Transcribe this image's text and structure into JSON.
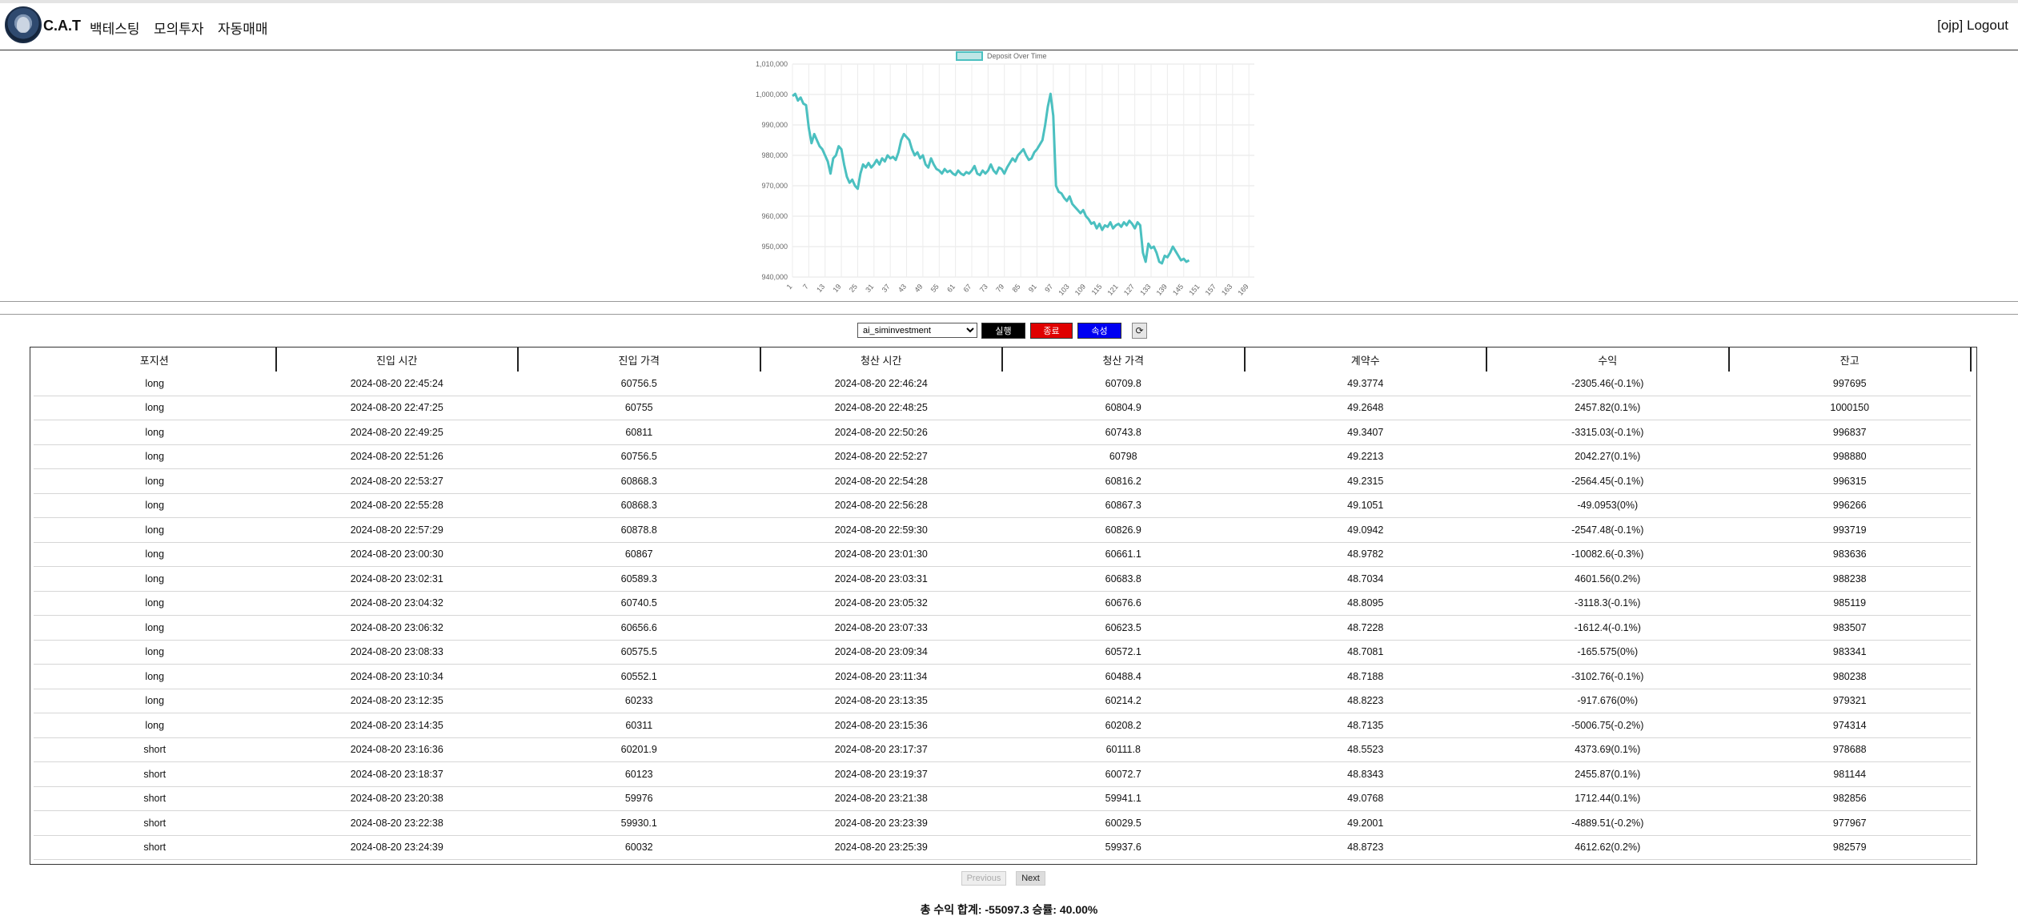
{
  "nav": {
    "brand": "C.A.T",
    "links": [
      "백테스팅",
      "모의투자",
      "자동매매"
    ],
    "user": "[ojp]",
    "logout": "Logout"
  },
  "chart_data": {
    "type": "line",
    "title": "",
    "legend": "Deposit Over Time",
    "legend_position": "top",
    "line_color": "#4bc0c0",
    "grid": true,
    "ylim": [
      940000,
      1010000
    ],
    "y_ticks": [
      "940,000",
      "950,000",
      "960,000",
      "970,000",
      "980,000",
      "990,000",
      "1,000,000",
      "1,010,000"
    ],
    "x_ticks": [
      "1",
      "7",
      "13",
      "19",
      "25",
      "31",
      "37",
      "43",
      "49",
      "55",
      "61",
      "67",
      "73",
      "79",
      "85",
      "91",
      "97",
      "103",
      "109",
      "115",
      "121",
      "127",
      "133",
      "139",
      "145",
      "151",
      "157",
      "163",
      "169"
    ],
    "x_count": 171,
    "keypoints": [
      [
        1,
        999500
      ],
      [
        2,
        1000200
      ],
      [
        3,
        998000
      ],
      [
        4,
        999000
      ],
      [
        5,
        997000
      ],
      [
        6,
        996500
      ],
      [
        7,
        989000
      ],
      [
        8,
        984000
      ],
      [
        9,
        987000
      ],
      [
        10,
        985000
      ],
      [
        11,
        983000
      ],
      [
        12,
        982000
      ],
      [
        13,
        980000
      ],
      [
        14,
        978000
      ],
      [
        15,
        974000
      ],
      [
        16,
        979000
      ],
      [
        17,
        980000
      ],
      [
        18,
        983000
      ],
      [
        19,
        982000
      ],
      [
        20,
        977000
      ],
      [
        21,
        973000
      ],
      [
        22,
        971000
      ],
      [
        23,
        972000
      ],
      [
        24,
        970000
      ],
      [
        25,
        969000
      ],
      [
        26,
        974000
      ],
      [
        27,
        977000
      ],
      [
        28,
        976000
      ],
      [
        29,
        977500
      ],
      [
        30,
        976000
      ],
      [
        31,
        977000
      ],
      [
        32,
        978500
      ],
      [
        33,
        977000
      ],
      [
        34,
        979000
      ],
      [
        35,
        978000
      ],
      [
        36,
        980000
      ],
      [
        37,
        979000
      ],
      [
        38,
        979500
      ],
      [
        39,
        978500
      ],
      [
        40,
        981000
      ],
      [
        41,
        985000
      ],
      [
        42,
        987000
      ],
      [
        43,
        986000
      ],
      [
        44,
        985000
      ],
      [
        45,
        982000
      ],
      [
        46,
        980000
      ],
      [
        47,
        981000
      ],
      [
        48,
        979000
      ],
      [
        49,
        980000
      ],
      [
        50,
        977000
      ],
      [
        51,
        976000
      ],
      [
        52,
        979000
      ],
      [
        53,
        977000
      ],
      [
        54,
        975500
      ],
      [
        55,
        975000
      ],
      [
        56,
        974000
      ],
      [
        57,
        975500
      ],
      [
        58,
        974500
      ],
      [
        59,
        975000
      ],
      [
        60,
        974000
      ],
      [
        61,
        973500
      ],
      [
        62,
        975000
      ],
      [
        63,
        974000
      ],
      [
        64,
        973500
      ],
      [
        65,
        974500
      ],
      [
        66,
        974000
      ],
      [
        67,
        975000
      ],
      [
        68,
        976500
      ],
      [
        69,
        974000
      ],
      [
        70,
        973500
      ],
      [
        71,
        975000
      ],
      [
        72,
        974000
      ],
      [
        73,
        975000
      ],
      [
        74,
        977000
      ],
      [
        75,
        975000
      ],
      [
        76,
        974000
      ],
      [
        77,
        976000
      ],
      [
        78,
        975500
      ],
      [
        79,
        974000
      ],
      [
        80,
        976000
      ],
      [
        81,
        977500
      ],
      [
        82,
        979000
      ],
      [
        83,
        978000
      ],
      [
        84,
        980000
      ],
      [
        85,
        981000
      ],
      [
        86,
        982000
      ],
      [
        87,
        980000
      ],
      [
        88,
        978500
      ],
      [
        89,
        979000
      ],
      [
        90,
        981000
      ],
      [
        91,
        982000
      ],
      [
        92,
        983500
      ],
      [
        93,
        985000
      ],
      [
        94,
        990000
      ],
      [
        95,
        996000
      ],
      [
        96,
        1000200
      ],
      [
        97,
        993000
      ],
      [
        98,
        970000
      ],
      [
        99,
        968000
      ],
      [
        100,
        967500
      ],
      [
        101,
        966000
      ],
      [
        102,
        965000
      ],
      [
        103,
        966500
      ],
      [
        104,
        964000
      ],
      [
        105,
        963000
      ],
      [
        106,
        962000
      ],
      [
        107,
        961000
      ],
      [
        108,
        962000
      ],
      [
        109,
        960000
      ],
      [
        110,
        959000
      ],
      [
        111,
        957500
      ],
      [
        112,
        958000
      ],
      [
        113,
        956000
      ],
      [
        114,
        957500
      ],
      [
        115,
        955500
      ],
      [
        116,
        957000
      ],
      [
        117,
        956500
      ],
      [
        118,
        958000
      ],
      [
        119,
        956000
      ],
      [
        120,
        957000
      ],
      [
        121,
        957500
      ],
      [
        122,
        956500
      ],
      [
        123,
        958000
      ],
      [
        124,
        957000
      ],
      [
        125,
        958500
      ],
      [
        126,
        957500
      ],
      [
        127,
        956000
      ],
      [
        128,
        958000
      ],
      [
        129,
        957000
      ],
      [
        130,
        948000
      ],
      [
        131,
        945000
      ],
      [
        132,
        951000
      ],
      [
        133,
        949500
      ],
      [
        134,
        950000
      ],
      [
        135,
        948000
      ],
      [
        136,
        945000
      ],
      [
        137,
        944500
      ],
      [
        138,
        947000
      ],
      [
        139,
        946500
      ],
      [
        140,
        948000
      ],
      [
        141,
        950000
      ],
      [
        142,
        948500
      ],
      [
        143,
        947000
      ],
      [
        144,
        945500
      ],
      [
        145,
        946000
      ],
      [
        146,
        945000
      ],
      [
        147,
        945500
      ]
    ]
  },
  "controls": {
    "strategy_value": "ai_siminvestment",
    "run_label": "실행",
    "stop_label": "종료",
    "prop_label": "속성",
    "refresh_glyph": "⟳"
  },
  "table": {
    "headers": [
      "포지션",
      "진입 시간",
      "진입 가격",
      "청산 시간",
      "청산 가격",
      "계약수",
      "수익",
      "잔고"
    ],
    "rows": [
      [
        "long",
        "2024-08-20 22:45:24",
        "60756.5",
        "2024-08-20 22:46:24",
        "60709.8",
        "49.3774",
        "-2305.46(-0.1%)",
        "997695"
      ],
      [
        "long",
        "2024-08-20 22:47:25",
        "60755",
        "2024-08-20 22:48:25",
        "60804.9",
        "49.2648",
        "2457.82(0.1%)",
        "1000150"
      ],
      [
        "long",
        "2024-08-20 22:49:25",
        "60811",
        "2024-08-20 22:50:26",
        "60743.8",
        "49.3407",
        "-3315.03(-0.1%)",
        "996837"
      ],
      [
        "long",
        "2024-08-20 22:51:26",
        "60756.5",
        "2024-08-20 22:52:27",
        "60798",
        "49.2213",
        "2042.27(0.1%)",
        "998880"
      ],
      [
        "long",
        "2024-08-20 22:53:27",
        "60868.3",
        "2024-08-20 22:54:28",
        "60816.2",
        "49.2315",
        "-2564.45(-0.1%)",
        "996315"
      ],
      [
        "long",
        "2024-08-20 22:55:28",
        "60868.3",
        "2024-08-20 22:56:28",
        "60867.3",
        "49.1051",
        "-49.0953(0%)",
        "996266"
      ],
      [
        "long",
        "2024-08-20 22:57:29",
        "60878.8",
        "2024-08-20 22:59:30",
        "60826.9",
        "49.0942",
        "-2547.48(-0.1%)",
        "993719"
      ],
      [
        "long",
        "2024-08-20 23:00:30",
        "60867",
        "2024-08-20 23:01:30",
        "60661.1",
        "48.9782",
        "-10082.6(-0.3%)",
        "983636"
      ],
      [
        "long",
        "2024-08-20 23:02:31",
        "60589.3",
        "2024-08-20 23:03:31",
        "60683.8",
        "48.7034",
        "4601.56(0.2%)",
        "988238"
      ],
      [
        "long",
        "2024-08-20 23:04:32",
        "60740.5",
        "2024-08-20 23:05:32",
        "60676.6",
        "48.8095",
        "-3118.3(-0.1%)",
        "985119"
      ],
      [
        "long",
        "2024-08-20 23:06:32",
        "60656.6",
        "2024-08-20 23:07:33",
        "60623.5",
        "48.7228",
        "-1612.4(-0.1%)",
        "983507"
      ],
      [
        "long",
        "2024-08-20 23:08:33",
        "60575.5",
        "2024-08-20 23:09:34",
        "60572.1",
        "48.7081",
        "-165.575(0%)",
        "983341"
      ],
      [
        "long",
        "2024-08-20 23:10:34",
        "60552.1",
        "2024-08-20 23:11:34",
        "60488.4",
        "48.7188",
        "-3102.76(-0.1%)",
        "980238"
      ],
      [
        "long",
        "2024-08-20 23:12:35",
        "60233",
        "2024-08-20 23:13:35",
        "60214.2",
        "48.8223",
        "-917.676(0%)",
        "979321"
      ],
      [
        "long",
        "2024-08-20 23:14:35",
        "60311",
        "2024-08-20 23:15:36",
        "60208.2",
        "48.7135",
        "-5006.75(-0.2%)",
        "974314"
      ],
      [
        "short",
        "2024-08-20 23:16:36",
        "60201.9",
        "2024-08-20 23:17:37",
        "60111.8",
        "48.5523",
        "4373.69(0.1%)",
        "978688"
      ],
      [
        "short",
        "2024-08-20 23:18:37",
        "60123",
        "2024-08-20 23:19:37",
        "60072.7",
        "48.8343",
        "2455.87(0.1%)",
        "981144"
      ],
      [
        "short",
        "2024-08-20 23:20:38",
        "59976",
        "2024-08-20 23:21:38",
        "59941.1",
        "49.0768",
        "1712.44(0.1%)",
        "982856"
      ],
      [
        "short",
        "2024-08-20 23:22:38",
        "59930.1",
        "2024-08-20 23:23:39",
        "60029.5",
        "49.2001",
        "-4889.51(-0.2%)",
        "977967"
      ],
      [
        "short",
        "2024-08-20 23:24:39",
        "60032",
        "2024-08-20 23:25:39",
        "59937.6",
        "48.8723",
        "4612.62(0.2%)",
        "982579"
      ]
    ]
  },
  "pager": {
    "prev": "Previous",
    "next": "Next"
  },
  "summary": {
    "total_label": "총 수익 합계:",
    "total_value": "-55097.3",
    "winrate_label": "승률:",
    "winrate_value": "40.00%"
  }
}
